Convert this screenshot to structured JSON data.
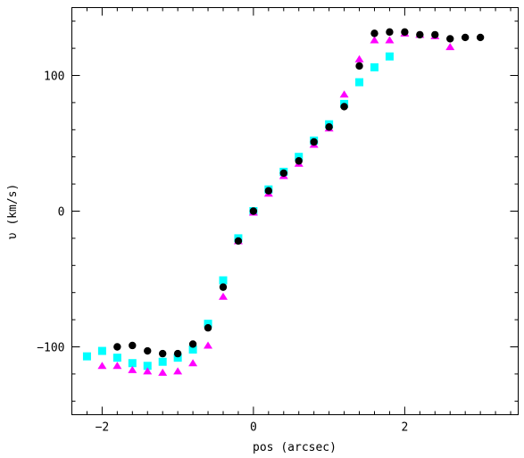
{
  "chart_data": {
    "type": "scatter",
    "xlabel": "pos (arcsec)",
    "ylabel": "υ (km/s)",
    "xlim": [
      -2.4,
      3.5
    ],
    "ylim": [
      -150,
      150
    ],
    "x_ticks_major": [
      -2,
      0,
      2
    ],
    "y_ticks_major": [
      -100,
      0,
      100
    ],
    "x_ticks_minor_step": 0.2,
    "y_ticks_minor_step": 20,
    "grid": false,
    "series": [
      {
        "marker": "square",
        "color": "#00ffff",
        "points": [
          [
            -2.2,
            -107
          ],
          [
            -2.0,
            -103
          ],
          [
            -1.8,
            -108
          ],
          [
            -1.6,
            -112
          ],
          [
            -1.4,
            -114
          ],
          [
            -1.2,
            -111
          ],
          [
            -1.0,
            -108
          ],
          [
            -0.8,
            -102
          ],
          [
            -0.6,
            -83
          ],
          [
            -0.4,
            -51
          ],
          [
            -0.2,
            -20
          ],
          [
            0.0,
            0
          ],
          [
            0.2,
            16
          ],
          [
            0.4,
            29
          ],
          [
            0.6,
            40
          ],
          [
            0.8,
            52
          ],
          [
            1.0,
            64
          ],
          [
            1.2,
            79
          ],
          [
            1.4,
            95
          ],
          [
            1.6,
            106
          ],
          [
            1.8,
            114
          ]
        ]
      },
      {
        "marker": "triangle",
        "color": "#ff00ff",
        "points": [
          [
            -2.0,
            -114
          ],
          [
            -1.8,
            -114
          ],
          [
            -1.6,
            -117
          ],
          [
            -1.4,
            -118
          ],
          [
            -1.2,
            -119
          ],
          [
            -1.0,
            -118
          ],
          [
            -0.8,
            -112
          ],
          [
            -0.6,
            -99
          ],
          [
            -0.4,
            -63
          ],
          [
            -0.2,
            -22
          ],
          [
            0.0,
            -1
          ],
          [
            0.2,
            13
          ],
          [
            0.4,
            26
          ],
          [
            0.6,
            35
          ],
          [
            0.8,
            49
          ],
          [
            1.0,
            61
          ],
          [
            1.2,
            86
          ],
          [
            1.4,
            112
          ],
          [
            1.6,
            126
          ],
          [
            1.8,
            126
          ],
          [
            2.0,
            131
          ],
          [
            2.2,
            130
          ],
          [
            2.4,
            129
          ],
          [
            2.6,
            121
          ]
        ]
      },
      {
        "marker": "circle",
        "color": "#000000",
        "points": [
          [
            -1.8,
            -100
          ],
          [
            -1.6,
            -99
          ],
          [
            -1.4,
            -103
          ],
          [
            -1.2,
            -105
          ],
          [
            -1.0,
            -105
          ],
          [
            -0.8,
            -98
          ],
          [
            -0.6,
            -86
          ],
          [
            -0.4,
            -56
          ],
          [
            -0.2,
            -22
          ],
          [
            0.0,
            0
          ],
          [
            0.2,
            15
          ],
          [
            0.4,
            28
          ],
          [
            0.6,
            37
          ],
          [
            0.8,
            51
          ],
          [
            1.0,
            62
          ],
          [
            1.2,
            77
          ],
          [
            1.4,
            107
          ],
          [
            1.6,
            131
          ],
          [
            1.8,
            132
          ],
          [
            2.0,
            132
          ],
          [
            2.2,
            130
          ],
          [
            2.4,
            130
          ],
          [
            2.6,
            127
          ],
          [
            2.8,
            128
          ],
          [
            3.0,
            128
          ]
        ]
      }
    ]
  }
}
